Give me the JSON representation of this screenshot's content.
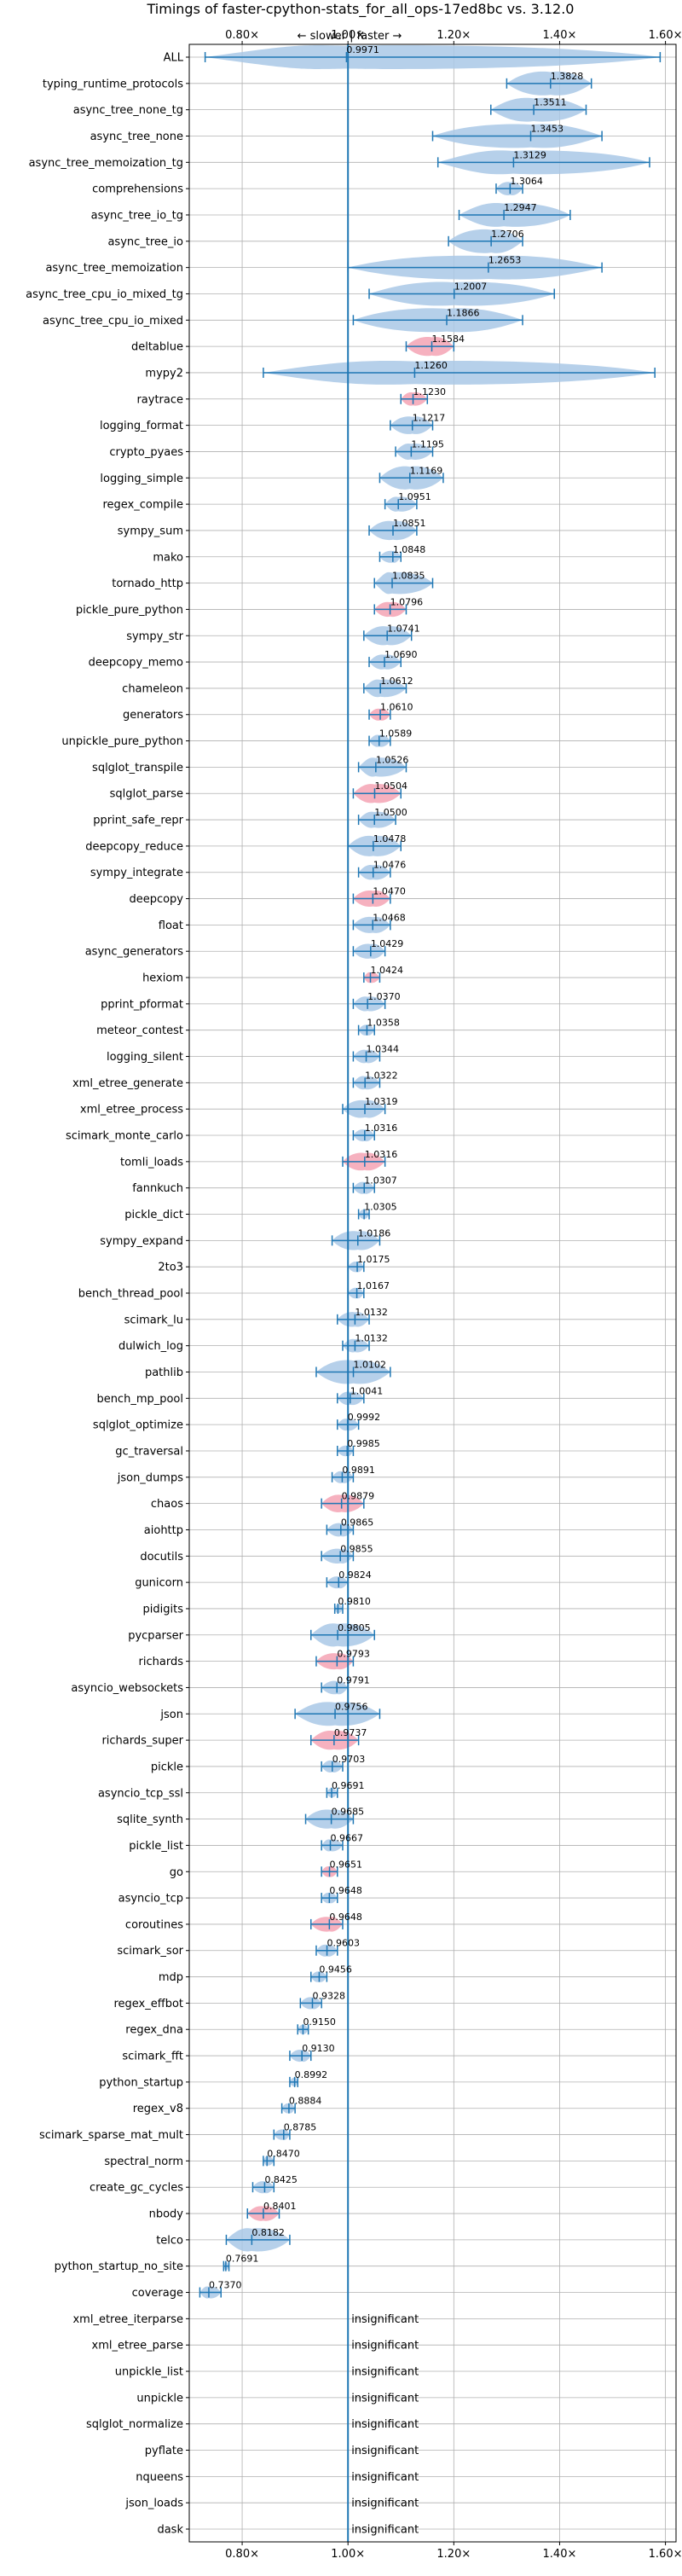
{
  "chart_data": {
    "type": "violin",
    "title": "Timings of faster-cpython-stats_for_all_ops-17ed8bc vs. 3.12.0",
    "direction_label": "← slower | faster →",
    "xlim": [
      0.7,
      1.62
    ],
    "x_ticks": [
      0.8,
      1.0,
      1.2,
      1.4,
      1.6
    ],
    "x_tick_labels": [
      "0.80×",
      "1.00×",
      "1.20×",
      "1.40×",
      "1.60×"
    ],
    "reference_line": 1.0,
    "insignificant_label": "insignificant",
    "colors": {
      "normal": "#1f77b4",
      "highlight": "#f4a3b4",
      "grid": "#b0b0b0"
    },
    "rows": [
      {
        "name": "ALL",
        "value": 0.9971,
        "min": 0.73,
        "max": 1.59,
        "label": "0.9971"
      },
      {
        "name": "typing_runtime_protocols",
        "value": 1.3828,
        "min": 1.3,
        "max": 1.46,
        "label": "1.3828"
      },
      {
        "name": "async_tree_none_tg",
        "value": 1.3511,
        "min": 1.27,
        "max": 1.45,
        "label": "1.3511"
      },
      {
        "name": "async_tree_none",
        "value": 1.3453,
        "min": 1.16,
        "max": 1.48,
        "label": "1.3453"
      },
      {
        "name": "async_tree_memoization_tg",
        "value": 1.3129,
        "min": 1.17,
        "max": 1.57,
        "label": "1.3129"
      },
      {
        "name": "comprehensions",
        "value": 1.3064,
        "min": 1.28,
        "max": 1.33,
        "label": "1.3064"
      },
      {
        "name": "async_tree_io_tg",
        "value": 1.2947,
        "min": 1.21,
        "max": 1.42,
        "label": "1.2947"
      },
      {
        "name": "async_tree_io",
        "value": 1.2706,
        "min": 1.19,
        "max": 1.33,
        "label": "1.2706"
      },
      {
        "name": "async_tree_memoization",
        "value": 1.2653,
        "min": 1.0,
        "max": 1.48,
        "label": "1.2653"
      },
      {
        "name": "async_tree_cpu_io_mixed_tg",
        "value": 1.2007,
        "min": 1.04,
        "max": 1.39,
        "label": "1.2007"
      },
      {
        "name": "async_tree_cpu_io_mixed",
        "value": 1.1866,
        "min": 1.01,
        "max": 1.33,
        "label": "1.1866"
      },
      {
        "name": "deltablue",
        "value": 1.1584,
        "min": 1.11,
        "max": 1.2,
        "label": "1.1584",
        "highlight": true
      },
      {
        "name": "mypy2",
        "value": 1.126,
        "min": 0.84,
        "max": 1.58,
        "label": "1.1260"
      },
      {
        "name": "raytrace",
        "value": 1.123,
        "min": 1.1,
        "max": 1.15,
        "label": "1.1230",
        "highlight": true
      },
      {
        "name": "logging_format",
        "value": 1.1217,
        "min": 1.08,
        "max": 1.16,
        "label": "1.1217"
      },
      {
        "name": "crypto_pyaes",
        "value": 1.1195,
        "min": 1.09,
        "max": 1.16,
        "label": "1.1195"
      },
      {
        "name": "logging_simple",
        "value": 1.1169,
        "min": 1.06,
        "max": 1.18,
        "label": "1.1169"
      },
      {
        "name": "regex_compile",
        "value": 1.0951,
        "min": 1.07,
        "max": 1.13,
        "label": "1.0951"
      },
      {
        "name": "sympy_sum",
        "value": 1.0851,
        "min": 1.04,
        "max": 1.13,
        "label": "1.0851"
      },
      {
        "name": "mako",
        "value": 1.0848,
        "min": 1.06,
        "max": 1.1,
        "label": "1.0848"
      },
      {
        "name": "tornado_http",
        "value": 1.0835,
        "min": 1.05,
        "max": 1.16,
        "label": "1.0835"
      },
      {
        "name": "pickle_pure_python",
        "value": 1.0796,
        "min": 1.05,
        "max": 1.11,
        "label": "1.0796",
        "highlight": true
      },
      {
        "name": "sympy_str",
        "value": 1.0741,
        "min": 1.03,
        "max": 1.12,
        "label": "1.0741"
      },
      {
        "name": "deepcopy_memo",
        "value": 1.069,
        "min": 1.04,
        "max": 1.1,
        "label": "1.0690"
      },
      {
        "name": "chameleon",
        "value": 1.0612,
        "min": 1.03,
        "max": 1.11,
        "label": "1.0612"
      },
      {
        "name": "generators",
        "value": 1.061,
        "min": 1.04,
        "max": 1.08,
        "label": "1.0610",
        "highlight": true
      },
      {
        "name": "unpickle_pure_python",
        "value": 1.0589,
        "min": 1.04,
        "max": 1.08,
        "label": "1.0589"
      },
      {
        "name": "sqlglot_transpile",
        "value": 1.0526,
        "min": 1.02,
        "max": 1.11,
        "label": "1.0526"
      },
      {
        "name": "sqlglot_parse",
        "value": 1.0504,
        "min": 1.01,
        "max": 1.1,
        "label": "1.0504",
        "highlight": true
      },
      {
        "name": "pprint_safe_repr",
        "value": 1.05,
        "min": 1.02,
        "max": 1.09,
        "label": "1.0500"
      },
      {
        "name": "deepcopy_reduce",
        "value": 1.0478,
        "min": 1.0,
        "max": 1.1,
        "label": "1.0478"
      },
      {
        "name": "sympy_integrate",
        "value": 1.0476,
        "min": 1.02,
        "max": 1.08,
        "label": "1.0476"
      },
      {
        "name": "deepcopy",
        "value": 1.047,
        "min": 1.01,
        "max": 1.08,
        "label": "1.0470",
        "highlight": true
      },
      {
        "name": "float",
        "value": 1.0468,
        "min": 1.01,
        "max": 1.08,
        "label": "1.0468"
      },
      {
        "name": "async_generators",
        "value": 1.0429,
        "min": 1.01,
        "max": 1.07,
        "label": "1.0429"
      },
      {
        "name": "hexiom",
        "value": 1.0424,
        "min": 1.03,
        "max": 1.06,
        "label": "1.0424",
        "highlight": true
      },
      {
        "name": "pprint_pformat",
        "value": 1.037,
        "min": 1.01,
        "max": 1.07,
        "label": "1.0370"
      },
      {
        "name": "meteor_contest",
        "value": 1.0358,
        "min": 1.02,
        "max": 1.05,
        "label": "1.0358"
      },
      {
        "name": "logging_silent",
        "value": 1.0344,
        "min": 1.01,
        "max": 1.06,
        "label": "1.0344"
      },
      {
        "name": "xml_etree_generate",
        "value": 1.0322,
        "min": 1.01,
        "max": 1.06,
        "label": "1.0322"
      },
      {
        "name": "xml_etree_process",
        "value": 1.0319,
        "min": 0.99,
        "max": 1.07,
        "label": "1.0319"
      },
      {
        "name": "scimark_monte_carlo",
        "value": 1.0316,
        "min": 1.01,
        "max": 1.05,
        "label": "1.0316"
      },
      {
        "name": "tomli_loads",
        "value": 1.0316,
        "min": 0.99,
        "max": 1.07,
        "label": "1.0316",
        "highlight": true
      },
      {
        "name": "fannkuch",
        "value": 1.0307,
        "min": 1.01,
        "max": 1.05,
        "label": "1.0307"
      },
      {
        "name": "pickle_dict",
        "value": 1.0305,
        "min": 1.02,
        "max": 1.04,
        "label": "1.0305"
      },
      {
        "name": "sympy_expand",
        "value": 1.0186,
        "min": 0.97,
        "max": 1.06,
        "label": "1.0186"
      },
      {
        "name": "2to3",
        "value": 1.0175,
        "min": 1.0,
        "max": 1.03,
        "label": "1.0175"
      },
      {
        "name": "bench_thread_pool",
        "value": 1.0167,
        "min": 1.0,
        "max": 1.03,
        "label": "1.0167"
      },
      {
        "name": "scimark_lu",
        "value": 1.0132,
        "min": 0.98,
        "max": 1.04,
        "label": "1.0132"
      },
      {
        "name": "dulwich_log",
        "value": 1.0132,
        "min": 0.99,
        "max": 1.04,
        "label": "1.0132"
      },
      {
        "name": "pathlib",
        "value": 1.0102,
        "min": 0.94,
        "max": 1.08,
        "label": "1.0102"
      },
      {
        "name": "bench_mp_pool",
        "value": 1.0041,
        "min": 0.98,
        "max": 1.03,
        "label": "1.0041"
      },
      {
        "name": "sqlglot_optimize",
        "value": 0.9992,
        "min": 0.98,
        "max": 1.02,
        "label": "0.9992"
      },
      {
        "name": "gc_traversal",
        "value": 0.9985,
        "min": 0.98,
        "max": 1.01,
        "label": "0.9985"
      },
      {
        "name": "json_dumps",
        "value": 0.9891,
        "min": 0.97,
        "max": 1.01,
        "label": "0.9891"
      },
      {
        "name": "chaos",
        "value": 0.9879,
        "min": 0.95,
        "max": 1.03,
        "label": "0.9879",
        "highlight": true
      },
      {
        "name": "aiohttp",
        "value": 0.9865,
        "min": 0.96,
        "max": 1.01,
        "label": "0.9865"
      },
      {
        "name": "docutils",
        "value": 0.9855,
        "min": 0.95,
        "max": 1.01,
        "label": "0.9855"
      },
      {
        "name": "gunicorn",
        "value": 0.9824,
        "min": 0.96,
        "max": 1.0,
        "label": "0.9824"
      },
      {
        "name": "pidigits",
        "value": 0.981,
        "min": 0.975,
        "max": 0.99,
        "label": "0.9810"
      },
      {
        "name": "pycparser",
        "value": 0.9805,
        "min": 0.93,
        "max": 1.05,
        "label": "0.9805"
      },
      {
        "name": "richards",
        "value": 0.9793,
        "min": 0.94,
        "max": 1.01,
        "label": "0.9793",
        "highlight": true
      },
      {
        "name": "asyncio_websockets",
        "value": 0.9791,
        "min": 0.95,
        "max": 1.0,
        "label": "0.9791"
      },
      {
        "name": "json",
        "value": 0.9756,
        "min": 0.9,
        "max": 1.06,
        "label": "0.9756"
      },
      {
        "name": "richards_super",
        "value": 0.9737,
        "min": 0.93,
        "max": 1.02,
        "label": "0.9737",
        "highlight": true
      },
      {
        "name": "pickle",
        "value": 0.9703,
        "min": 0.95,
        "max": 0.99,
        "label": "0.9703"
      },
      {
        "name": "asyncio_tcp_ssl",
        "value": 0.9691,
        "min": 0.96,
        "max": 0.98,
        "label": "0.9691"
      },
      {
        "name": "sqlite_synth",
        "value": 0.9685,
        "min": 0.92,
        "max": 1.01,
        "label": "0.9685"
      },
      {
        "name": "pickle_list",
        "value": 0.9667,
        "min": 0.95,
        "max": 0.99,
        "label": "0.9667"
      },
      {
        "name": "go",
        "value": 0.9651,
        "min": 0.95,
        "max": 0.98,
        "label": "0.9651",
        "highlight": true
      },
      {
        "name": "asyncio_tcp",
        "value": 0.9648,
        "min": 0.95,
        "max": 0.98,
        "label": "0.9648"
      },
      {
        "name": "coroutines",
        "value": 0.9648,
        "min": 0.93,
        "max": 0.99,
        "label": "0.9648",
        "highlight": true
      },
      {
        "name": "scimark_sor",
        "value": 0.9603,
        "min": 0.94,
        "max": 0.98,
        "label": "0.9603"
      },
      {
        "name": "mdp",
        "value": 0.9456,
        "min": 0.93,
        "max": 0.96,
        "label": "0.9456"
      },
      {
        "name": "regex_effbot",
        "value": 0.9328,
        "min": 0.91,
        "max": 0.95,
        "label": "0.9328"
      },
      {
        "name": "regex_dna",
        "value": 0.915,
        "min": 0.905,
        "max": 0.925,
        "label": "0.9150"
      },
      {
        "name": "scimark_fft",
        "value": 0.913,
        "min": 0.89,
        "max": 0.93,
        "label": "0.9130"
      },
      {
        "name": "python_startup",
        "value": 0.8992,
        "min": 0.89,
        "max": 0.905,
        "label": "0.8992"
      },
      {
        "name": "regex_v8",
        "value": 0.8884,
        "min": 0.875,
        "max": 0.9,
        "label": "0.8884"
      },
      {
        "name": "scimark_sparse_mat_mult",
        "value": 0.8785,
        "min": 0.86,
        "max": 0.89,
        "label": "0.8785"
      },
      {
        "name": "spectral_norm",
        "value": 0.847,
        "min": 0.84,
        "max": 0.86,
        "label": "0.8470"
      },
      {
        "name": "create_gc_cycles",
        "value": 0.8425,
        "min": 0.82,
        "max": 0.86,
        "label": "0.8425"
      },
      {
        "name": "nbody",
        "value": 0.8401,
        "min": 0.81,
        "max": 0.87,
        "label": "0.8401",
        "highlight": true
      },
      {
        "name": "telco",
        "value": 0.8182,
        "min": 0.77,
        "max": 0.89,
        "label": "0.8182"
      },
      {
        "name": "python_startup_no_site",
        "value": 0.7691,
        "min": 0.765,
        "max": 0.775,
        "label": "0.7691"
      },
      {
        "name": "coverage",
        "value": 0.737,
        "min": 0.72,
        "max": 0.76,
        "label": "0.7370"
      },
      {
        "name": "xml_etree_iterparse",
        "insignificant": true
      },
      {
        "name": "xml_etree_parse",
        "insignificant": true
      },
      {
        "name": "unpickle_list",
        "insignificant": true
      },
      {
        "name": "unpickle",
        "insignificant": true
      },
      {
        "name": "sqlglot_normalize",
        "insignificant": true
      },
      {
        "name": "pyflate",
        "insignificant": true
      },
      {
        "name": "nqueens",
        "insignificant": true
      },
      {
        "name": "json_loads",
        "insignificant": true
      },
      {
        "name": "dask",
        "insignificant": true
      }
    ]
  }
}
